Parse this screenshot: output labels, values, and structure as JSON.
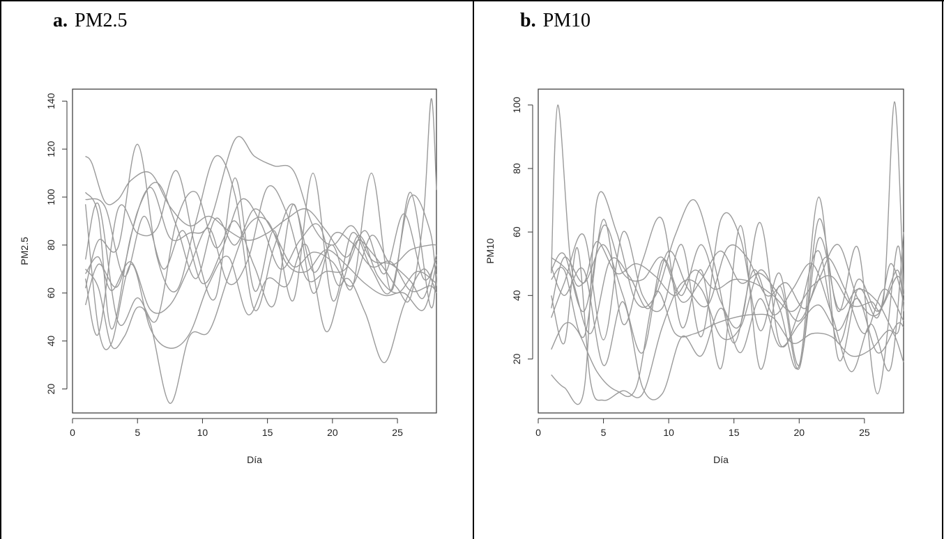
{
  "panels": [
    {
      "letter": "a.",
      "title": "PM2.5"
    },
    {
      "letter": "b.",
      "title": "PM10"
    }
  ],
  "colors": {
    "curve": "#9a9a9a",
    "axis": "#333333"
  },
  "chart_data": [
    {
      "type": "line",
      "title": "",
      "xlabel": "Día",
      "ylabel": "PM2.5",
      "xlim": [
        0,
        28
      ],
      "ylim": [
        10,
        145
      ],
      "xticks": [
        0,
        5,
        10,
        15,
        20,
        25
      ],
      "yticks": [
        20,
        40,
        60,
        80,
        100,
        120,
        140
      ],
      "grid": false,
      "series": [
        {
          "x": [
            1,
            1.5,
            2.5,
            3.5,
            4.5,
            6,
            7.5,
            9,
            10.5,
            12,
            13.5,
            15,
            16.5,
            18,
            19.5,
            21,
            22,
            23,
            24,
            25,
            26,
            27,
            27.6,
            28
          ],
          "values": [
            117,
            114,
            98,
            99,
            107,
            110,
            96,
            88,
            92,
            86,
            82,
            85,
            91,
            95,
            86,
            75,
            82,
            77,
            70,
            62,
            58,
            92,
            141,
            103
          ]
        },
        {
          "x": [
            1,
            2,
            3,
            4,
            5,
            6,
            7.5,
            9,
            10.5,
            12,
            13.5,
            15,
            16.5,
            18,
            19.5,
            21,
            22.5,
            24,
            25.5,
            27,
            28
          ],
          "values": [
            70,
            62,
            38,
            42,
            54,
            47,
            14,
            42,
            44,
            67,
            88,
            90,
            72,
            69,
            78,
            72,
            64,
            59,
            60,
            53,
            72
          ]
        },
        {
          "x": [
            1,
            2,
            3,
            4.5,
            6,
            7.5,
            9,
            10.5,
            12.5,
            14,
            15.5,
            17,
            18.5,
            20,
            21.5,
            23,
            24.5,
            26,
            27,
            28
          ],
          "values": [
            102,
            92,
            45,
            84,
            104,
            83,
            85,
            89,
            124,
            117,
            113,
            111,
            88,
            80,
            88,
            74,
            72,
            65,
            58,
            76
          ]
        },
        {
          "x": [
            1,
            2,
            3,
            4.5,
            6,
            7.5,
            9,
            10.5,
            12,
            13.5,
            15,
            16.5,
            18,
            19.5,
            21,
            22.5,
            24,
            25.5,
            27,
            28
          ],
          "values": [
            97,
            45,
            39,
            72,
            45,
            37,
            43,
            64,
            75,
            51,
            66,
            63,
            80,
            44,
            66,
            52,
            31,
            55,
            70,
            60
          ]
        },
        {
          "x": [
            1,
            2,
            3.5,
            5,
            6.5,
            8,
            9.5,
            11,
            12.5,
            14,
            15.5,
            17,
            18.5,
            20,
            21.5,
            23,
            24.5,
            26,
            27.5,
            28
          ],
          "values": [
            62,
            82,
            79,
            122,
            75,
            61,
            90,
            117,
            101,
            53,
            79,
            97,
            69,
            80,
            62,
            110,
            61,
            102,
            55,
            68
          ]
        },
        {
          "x": [
            1,
            2,
            3,
            4.5,
            6,
            7.5,
            9,
            10.5,
            12,
            13.5,
            15,
            16.5,
            18,
            19.5,
            21,
            22.5,
            24,
            25.5,
            27,
            28
          ],
          "values": [
            68,
            75,
            61,
            73,
            53,
            55,
            71,
            87,
            64,
            74,
            104,
            93,
            66,
            69,
            70,
            86,
            68,
            93,
            66,
            74
          ]
        },
        {
          "x": [
            1,
            2,
            3.5,
            5,
            6.5,
            8,
            9.5,
            11,
            12.5,
            14,
            15.5,
            17,
            18.5,
            20,
            21.5,
            23,
            24.5,
            26,
            27.5,
            28
          ],
          "values": [
            66,
            43,
            95,
            85,
            87,
            111,
            78,
            58,
            108,
            61,
            86,
            57,
            110,
            57,
            85,
            70,
            61,
            100,
            86,
            63
          ]
        },
        {
          "x": [
            1,
            2,
            3.5,
            5,
            6.5,
            8,
            9.5,
            11,
            12.5,
            14,
            15.5,
            17,
            18.5,
            20,
            21.5,
            23,
            24.5,
            26,
            27.5,
            28
          ],
          "values": [
            74,
            97,
            48,
            58,
            49,
            90,
            102,
            79,
            90,
            71,
            55,
            97,
            60,
            84,
            81,
            71,
            73,
            61,
            63,
            60
          ]
        },
        {
          "x": [
            1,
            2.5,
            4,
            5.5,
            7,
            8.5,
            10,
            11.5,
            13,
            14.5,
            16,
            17.5,
            19,
            20.5,
            22,
            23.5,
            25,
            26.5,
            28
          ],
          "values": [
            99,
            96,
            67,
            92,
            70,
            86,
            64,
            78,
            99,
            89,
            70,
            82,
            88,
            63,
            84,
            67,
            60,
            69,
            64
          ]
        },
        {
          "x": [
            1,
            2,
            3.5,
            5,
            6.5,
            8,
            9.5,
            11,
            12.5,
            14,
            15.5,
            17,
            18.5,
            20,
            21.5,
            23,
            24.5,
            26,
            27.5,
            28
          ],
          "values": [
            55,
            72,
            63,
            94,
            106,
            88,
            66,
            91,
            80,
            95,
            85,
            71,
            77,
            73,
            63,
            84,
            72,
            78,
            80,
            80
          ]
        }
      ]
    },
    {
      "type": "line",
      "title": "",
      "xlabel": "Día",
      "ylabel": "PM10",
      "xlim": [
        0,
        28
      ],
      "ylim": [
        3,
        105
      ],
      "xticks": [
        0,
        5,
        10,
        15,
        20,
        25
      ],
      "yticks": [
        20,
        40,
        60,
        80,
        100
      ],
      "grid": false,
      "series": [
        {
          "x": [
            1,
            1.5,
            2.5,
            3.5,
            4.5,
            6,
            7.5,
            9,
            10.5,
            12,
            13.5,
            15,
            16.5,
            18,
            19.5,
            21,
            22.5,
            24,
            25.5,
            26.5,
            27.3,
            28
          ],
          "values": [
            47,
            100,
            50,
            44,
            57,
            47,
            50,
            46,
            40,
            48,
            42,
            45,
            44,
            40,
            35,
            43,
            46,
            37,
            38,
            40,
            101,
            42
          ]
        },
        {
          "x": [
            1,
            2,
            3,
            4,
            5,
            6.5,
            8,
            9.5,
            11,
            12.5,
            14,
            15.5,
            17,
            18.5,
            20,
            21.5,
            23,
            24.5,
            26,
            27,
            28
          ],
          "values": [
            40,
            25,
            55,
            13,
            7,
            10,
            9,
            30,
            44,
            42,
            27,
            30,
            48,
            36,
            18,
            71,
            20,
            42,
            33,
            50,
            38
          ]
        },
        {
          "x": [
            1,
            2,
            3.5,
            4.5,
            6,
            7.5,
            9,
            10.5,
            12,
            13.5,
            15,
            16.5,
            18,
            19.5,
            21,
            22.5,
            24,
            25.5,
            27,
            28
          ],
          "values": [
            15,
            11,
            10,
            70,
            60,
            38,
            40,
            59,
            70,
            50,
            25,
            48,
            34,
            42,
            50,
            34,
            16,
            31,
            17,
            60
          ]
        },
        {
          "x": [
            1,
            2,
            3,
            4.5,
            6,
            7.5,
            9,
            10.5,
            12,
            13.5,
            15,
            16.5,
            18,
            19.5,
            21,
            22.5,
            24,
            25.5,
            27,
            28
          ],
          "values": [
            23,
            31,
            29,
            16,
            10,
            11,
            41,
            28,
            28,
            31,
            33,
            34,
            33,
            25,
            28,
            27,
            21,
            23,
            29,
            19
          ]
        },
        {
          "x": [
            1,
            2,
            3.5,
            5,
            6.5,
            8,
            9.5,
            11,
            12.5,
            14,
            15.5,
            17,
            18.5,
            20,
            21.5,
            23,
            24.5,
            26,
            27.5,
            28
          ],
          "values": [
            45,
            48,
            27,
            64,
            31,
            51,
            64,
            30,
            48,
            17,
            62,
            17,
            43,
            17,
            64,
            35,
            55,
            9,
            55,
            35
          ]
        },
        {
          "x": [
            1,
            2,
            3.5,
            5,
            6.5,
            8,
            9.5,
            11,
            12.5,
            14,
            15.5,
            17,
            18.5,
            20,
            21.5,
            23,
            24.5,
            26,
            27.5,
            28
          ],
          "values": [
            36,
            52,
            44,
            56,
            40,
            22,
            51,
            40,
            56,
            38,
            31,
            63,
            25,
            35,
            54,
            25,
            45,
            35,
            46,
            40
          ]
        },
        {
          "x": [
            1,
            2,
            3.5,
            5,
            6.5,
            8,
            9.5,
            11,
            12.5,
            14,
            15.5,
            17,
            18.5,
            20,
            21.5,
            23,
            24.5,
            26,
            27.5,
            28
          ],
          "values": [
            33,
            44,
            59,
            26,
            60,
            40,
            36,
            56,
            27,
            64,
            58,
            29,
            47,
            18,
            58,
            36,
            42,
            38,
            28,
            43
          ]
        },
        {
          "x": [
            1,
            2,
            3.5,
            5,
            6.5,
            8,
            9.5,
            11,
            12.5,
            14,
            15.5,
            17,
            18.5,
            20,
            21.5,
            23,
            24.5,
            26,
            27.5,
            28
          ],
          "values": [
            48,
            53,
            35,
            62,
            47,
            45,
            52,
            38,
            45,
            54,
            44,
            47,
            40,
            32,
            45,
            56,
            39,
            34,
            48,
            36
          ]
        },
        {
          "x": [
            1,
            2.5,
            4,
            5.5,
            7,
            8.5,
            10,
            11.5,
            13,
            14.5,
            16,
            17.5,
            19,
            20.5,
            22,
            23.5,
            25,
            26.5,
            28
          ],
          "values": [
            52,
            46,
            28,
            51,
            46,
            36,
            54,
            42,
            37,
            55,
            52,
            40,
            44,
            36,
            52,
            42,
            28,
            42,
            32
          ]
        },
        {
          "x": [
            1,
            2,
            3.5,
            5,
            6.5,
            8,
            9.5,
            11,
            12.5,
            14,
            15.5,
            17,
            18.5,
            20,
            21.5,
            23,
            24.5,
            26,
            27.5,
            28
          ],
          "values": [
            49,
            40,
            48,
            18,
            38,
            11,
            9,
            27,
            21,
            36,
            22,
            39,
            24,
            31,
            37,
            29,
            39,
            22,
            31,
            30
          ]
        }
      ]
    }
  ]
}
